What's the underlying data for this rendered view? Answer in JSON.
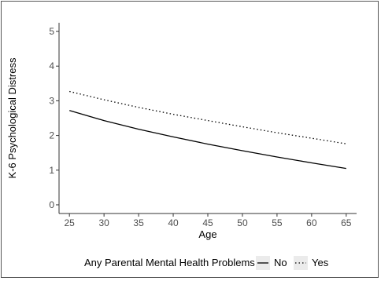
{
  "chart_data": {
    "type": "line",
    "title": "",
    "xlabel": "Age",
    "ylabel": "K-6 Psychological Distress",
    "xlim": [
      23.5,
      66.5
    ],
    "ylim": [
      -0.25,
      5.25
    ],
    "xticks": [
      25,
      30,
      35,
      40,
      45,
      50,
      55,
      60,
      65
    ],
    "yticks": [
      0,
      1,
      2,
      3,
      4,
      5
    ],
    "grid": false,
    "legend": {
      "title": "Any Parental Mental Health Problems",
      "placement": "bottom"
    },
    "x": [
      25,
      30,
      35,
      40,
      45,
      50,
      55,
      60,
      65
    ],
    "series": [
      {
        "name": "No",
        "linestyle": "solid",
        "color": "#000000",
        "values": [
          2.72,
          2.43,
          2.18,
          1.96,
          1.75,
          1.56,
          1.38,
          1.21,
          1.05
        ]
      },
      {
        "name": "Yes",
        "linestyle": "dotted",
        "color": "#000000",
        "values": [
          3.27,
          3.03,
          2.81,
          2.61,
          2.43,
          2.25,
          2.08,
          1.92,
          1.76
        ]
      }
    ]
  }
}
